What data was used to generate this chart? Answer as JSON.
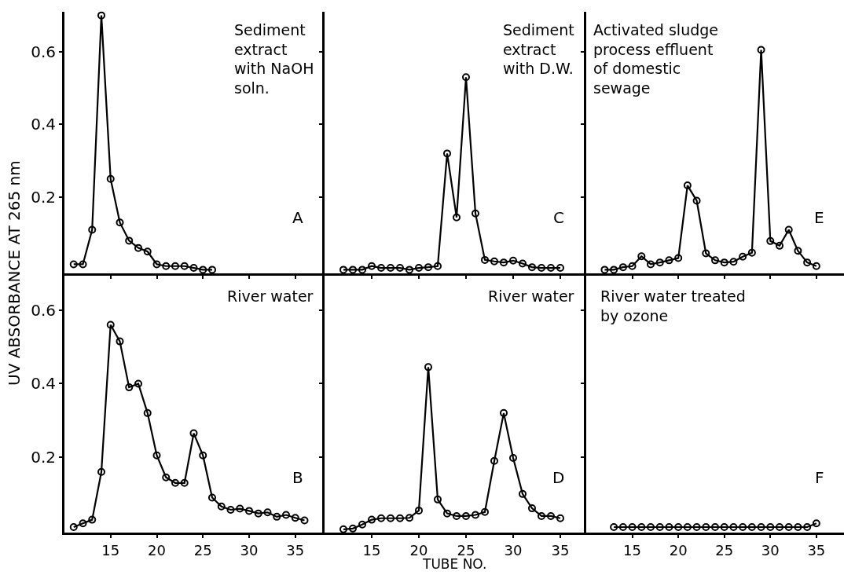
{
  "chart_data": [
    {
      "type": "line",
      "ylabel": "UV ABSORBANCE AT 265 nm",
      "xlim": [
        10,
        38
      ],
      "xticks": [
        15,
        20,
        25,
        30,
        35
      ],
      "ylim": [
        -0.01,
        0.71
      ],
      "yticks": [
        0.2,
        0.4,
        0.6
      ],
      "tick_labels": "y",
      "grid": false,
      "marker": "circle",
      "line_style": "solid",
      "annotations": [
        "Sediment\nextract\nwith NaOH\nsoln.",
        "A"
      ],
      "series": [
        {
          "color": "#000000",
          "x": [
            11,
            12,
            13,
            14,
            15,
            16,
            17,
            18,
            19,
            20,
            21,
            22,
            23,
            24,
            25,
            26
          ],
          "values": [
            0.015,
            0.015,
            0.11,
            0.7,
            0.25,
            0.13,
            0.08,
            0.06,
            0.05,
            0.015,
            0.01,
            0.01,
            0.01,
            0.005,
            0,
            0
          ]
        }
      ]
    },
    {
      "type": "line",
      "xlim": [
        10,
        37.5
      ],
      "xticks": [
        15,
        20,
        25,
        30,
        35
      ],
      "ylim": [
        -0.01,
        0.71
      ],
      "yticks": [
        0.2,
        0.4,
        0.6
      ],
      "tick_labels": false,
      "grid": false,
      "marker": "circle",
      "line_style": "solid",
      "annotations": [
        "Sediment\nextract\nwith D.W.",
        "C"
      ],
      "series": [
        {
          "color": "#000000",
          "x": [
            12,
            13,
            14,
            15,
            16,
            17,
            18,
            19,
            20,
            21,
            22,
            23,
            24,
            25,
            26,
            27,
            28,
            29,
            30,
            31,
            32,
            33,
            34,
            35
          ],
          "values": [
            0,
            0,
            0,
            0.01,
            0.005,
            0.005,
            0.005,
            0,
            0.005,
            0.007,
            0.01,
            0.32,
            0.144,
            0.53,
            0.155,
            0.027,
            0.023,
            0.02,
            0.025,
            0.017,
            0.007,
            0.005,
            0.005,
            0.005
          ]
        }
      ]
    },
    {
      "type": "line",
      "xlim": [
        10,
        38
      ],
      "xticks": [
        15,
        20,
        25,
        30,
        35
      ],
      "ylim": [
        -0.01,
        0.71
      ],
      "yticks": [
        0.2,
        0.4,
        0.6
      ],
      "tick_labels": false,
      "grid": false,
      "marker": "circle",
      "line_style": "solid",
      "annotations": [
        "Activated sludge\nprocess effluent\nof domestic\nsewage",
        "E"
      ],
      "series": [
        {
          "color": "#000000",
          "x": [
            12,
            13,
            14,
            15,
            16,
            17,
            18,
            19,
            20,
            21,
            22,
            23,
            24,
            25,
            26,
            27,
            28,
            29,
            30,
            31,
            32,
            33,
            34,
            35
          ],
          "values": [
            0,
            0,
            0.007,
            0.01,
            0.037,
            0.015,
            0.02,
            0.026,
            0.032,
            0.232,
            0.19,
            0.045,
            0.026,
            0.02,
            0.022,
            0.036,
            0.047,
            0.605,
            0.079,
            0.066,
            0.11,
            0.052,
            0.02,
            0.01
          ]
        }
      ]
    },
    {
      "type": "line",
      "xlim": [
        10,
        38
      ],
      "xticks": [
        15,
        20,
        25,
        30,
        35
      ],
      "ylim": [
        -0.005,
        0.7
      ],
      "yticks": [
        0.2,
        0.4,
        0.6
      ],
      "grid": false,
      "marker": "circle",
      "line_style": "solid",
      "annotations": [
        "River water",
        "B"
      ],
      "series": [
        {
          "color": "#000000",
          "x": [
            11,
            12,
            13,
            14,
            15,
            16,
            17,
            18,
            19,
            20,
            21,
            22,
            23,
            24,
            25,
            26,
            27,
            28,
            29,
            30,
            31,
            32,
            33,
            34,
            35,
            36
          ],
          "values": [
            0.01,
            0.02,
            0.03,
            0.16,
            0.56,
            0.515,
            0.39,
            0.4,
            0.32,
            0.205,
            0.145,
            0.13,
            0.13,
            0.265,
            0.205,
            0.09,
            0.066,
            0.057,
            0.06,
            0.054,
            0.047,
            0.05,
            0.038,
            0.043,
            0.035,
            0.028
          ]
        }
      ]
    },
    {
      "type": "line",
      "xlabel": "TUBE NO.",
      "xlim": [
        10,
        37.5
      ],
      "xticks": [
        15,
        20,
        25,
        30,
        35
      ],
      "ylim": [
        -0.005,
        0.7
      ],
      "yticks": [
        0.2,
        0.4,
        0.6
      ],
      "tick_labels": "x",
      "grid": false,
      "marker": "circle",
      "line_style": "solid",
      "annotations": [
        "River water",
        "D"
      ],
      "series": [
        {
          "color": "#000000",
          "x": [
            12,
            13,
            14,
            15,
            16,
            17,
            18,
            19,
            20,
            21,
            22,
            23,
            24,
            25,
            26,
            27,
            28,
            29,
            30,
            31,
            32,
            33,
            34,
            35
          ],
          "values": [
            0.004,
            0.006,
            0.017,
            0.03,
            0.034,
            0.034,
            0.034,
            0.035,
            0.055,
            0.445,
            0.085,
            0.047,
            0.04,
            0.04,
            0.043,
            0.051,
            0.19,
            0.32,
            0.198,
            0.1,
            0.061,
            0.04,
            0.04,
            0.034
          ]
        }
      ]
    },
    {
      "type": "line",
      "xlim": [
        10,
        38
      ],
      "xticks": [
        15,
        20,
        25,
        30,
        35
      ],
      "ylim": [
        -0.005,
        0.7
      ],
      "yticks": [
        0.2,
        0.4,
        0.6
      ],
      "tick_labels": "x",
      "grid": false,
      "marker": "circle",
      "line_style": "solid",
      "annotations": [
        "River water treated\nby ozone",
        "F"
      ],
      "series": [
        {
          "color": "#000000",
          "x": [
            13,
            14,
            15,
            16,
            17,
            18,
            19,
            20,
            21,
            22,
            23,
            24,
            25,
            26,
            27,
            28,
            29,
            30,
            31,
            32,
            33,
            34,
            35
          ],
          "values": [
            0.01,
            0.01,
            0.01,
            0.01,
            0.01,
            0.01,
            0.01,
            0.01,
            0.01,
            0.01,
            0.01,
            0.01,
            0.01,
            0.01,
            0.01,
            0.01,
            0.01,
            0.01,
            0.01,
            0.01,
            0.01,
            0.01,
            0.02
          ]
        }
      ]
    }
  ]
}
